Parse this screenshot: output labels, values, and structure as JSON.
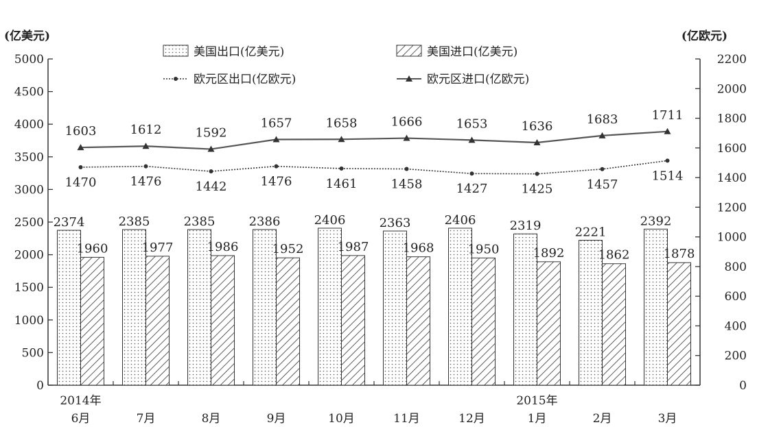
{
  "chart_data": {
    "type": "bar",
    "left_axis_unit": "(亿美元)",
    "right_axis_unit": "(亿欧元)",
    "categories": [
      {
        "month": "6月",
        "year": "2014年"
      },
      {
        "month": "7月",
        "year": ""
      },
      {
        "month": "8月",
        "year": ""
      },
      {
        "month": "9月",
        "year": ""
      },
      {
        "month": "10月",
        "year": ""
      },
      {
        "month": "11月",
        "year": ""
      },
      {
        "month": "12月",
        "year": ""
      },
      {
        "month": "1月",
        "year": "2015年"
      },
      {
        "month": "2月",
        "year": ""
      },
      {
        "month": "3月",
        "year": ""
      }
    ],
    "left_ylim": [
      0,
      5000
    ],
    "left_ticks": [
      0,
      500,
      1000,
      1500,
      2000,
      2500,
      3000,
      3500,
      4000,
      4500,
      5000
    ],
    "right_ylim": [
      0,
      2200
    ],
    "right_ticks": [
      0,
      200,
      400,
      600,
      800,
      1000,
      1200,
      1400,
      1600,
      1800,
      2000,
      2200
    ],
    "series": [
      {
        "name": "美国出口(亿美元)",
        "kind": "bar",
        "axis": "left",
        "pattern": "dots",
        "values": [
          2374,
          2385,
          2385,
          2386,
          2406,
          2363,
          2406,
          2319,
          2221,
          2392
        ]
      },
      {
        "name": "美国进口(亿美元)",
        "kind": "bar",
        "axis": "left",
        "pattern": "hatch",
        "values": [
          1960,
          1977,
          1986,
          1952,
          1987,
          1968,
          1950,
          1892,
          1862,
          1878
        ]
      },
      {
        "name": "欧元区出口(亿欧元)",
        "kind": "line",
        "axis": "right",
        "marker": "circle",
        "style": "dotted",
        "values": [
          1470,
          1476,
          1442,
          1476,
          1461,
          1458,
          1427,
          1425,
          1457,
          1514
        ]
      },
      {
        "name": "欧元区进口(亿欧元)",
        "kind": "line",
        "axis": "right",
        "marker": "triangle",
        "style": "solid",
        "values": [
          1603,
          1612,
          1592,
          1657,
          1658,
          1666,
          1653,
          1636,
          1683,
          1711
        ]
      }
    ],
    "grid": false,
    "legend_position": "top"
  }
}
